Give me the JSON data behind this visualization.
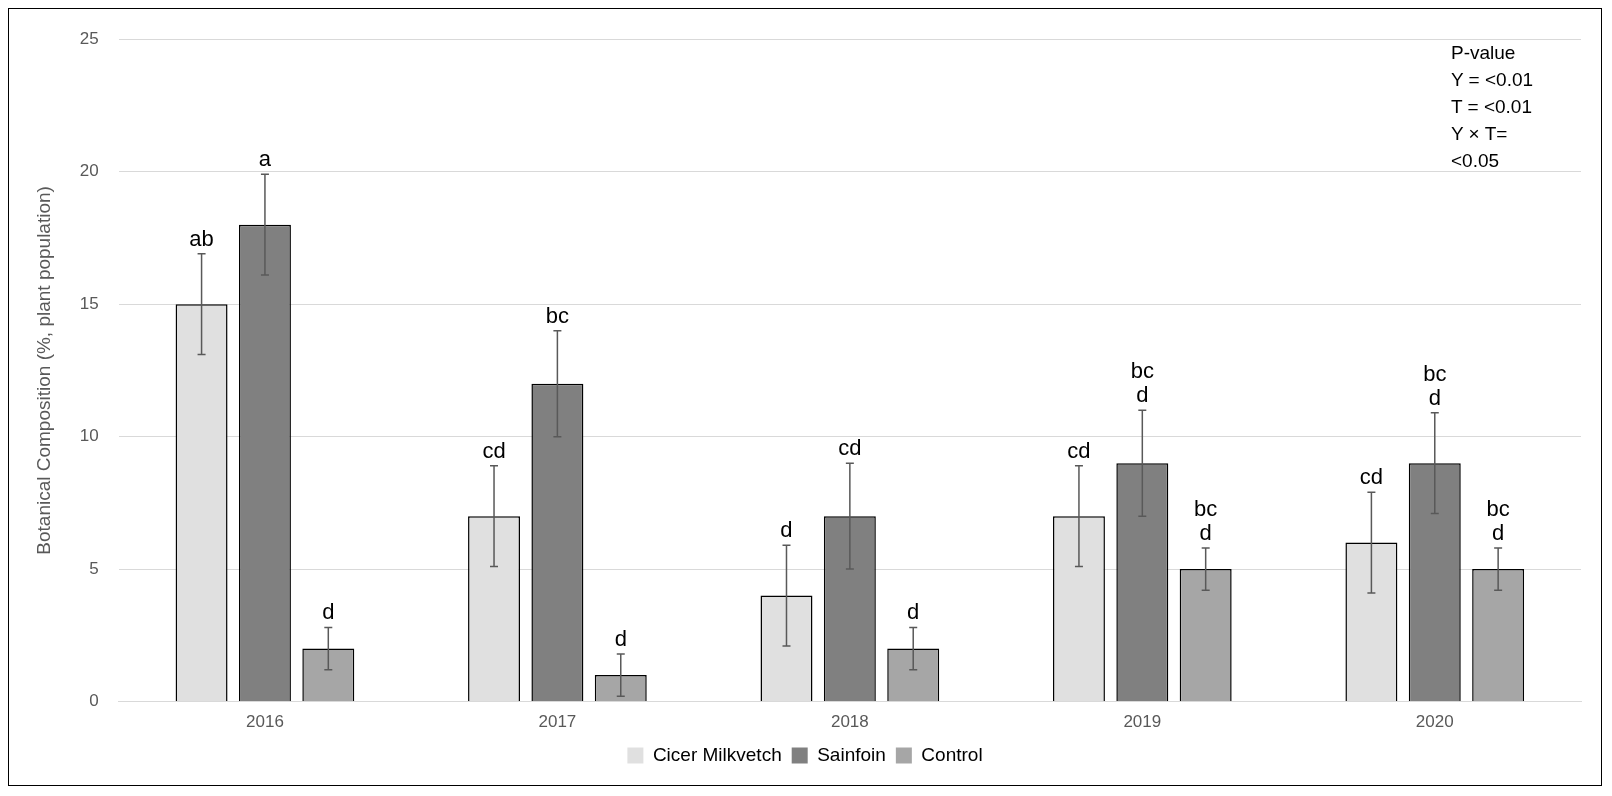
{
  "chart_data": {
    "type": "bar",
    "ylabel": "Botanical Composition (%, plant population)",
    "categories": [
      "2016",
      "2017",
      "2018",
      "2019",
      "2020"
    ],
    "series": [
      {
        "name": "Cicer Milkvetch",
        "color": "#e0e0e0",
        "values": [
          15,
          7,
          4,
          7,
          6
        ],
        "errors": [
          1.9,
          1.9,
          1.9,
          1.9,
          1.9
        ],
        "value_labels": [
          "ab",
          "cd",
          "d",
          "cd",
          "cd"
        ]
      },
      {
        "name": "Sainfoin",
        "color": "#808080",
        "values": [
          18,
          12,
          7,
          9,
          9
        ],
        "errors": [
          1.9,
          2,
          2,
          2,
          1.9
        ],
        "value_labels": [
          "a",
          "bc",
          "cd",
          "bc\nd",
          "bc\nd"
        ]
      },
      {
        "name": "Control",
        "color": "#a6a6a6",
        "values": [
          2,
          1,
          2,
          5,
          5
        ],
        "errors": [
          0.8,
          0.8,
          0.8,
          0.8,
          0.8
        ],
        "value_labels": [
          "d",
          "d",
          "d",
          "bc\nd",
          "bc\nd"
        ]
      }
    ],
    "ylim": [
      0,
      25
    ],
    "yticks": [
      0,
      5,
      10,
      15,
      20,
      25
    ],
    "grid": "y",
    "legend": "bottom",
    "annotations": [
      "P-value",
      "Y = <0.01",
      "T = <0.01",
      "Y × T=",
      "<0.05"
    ]
  }
}
